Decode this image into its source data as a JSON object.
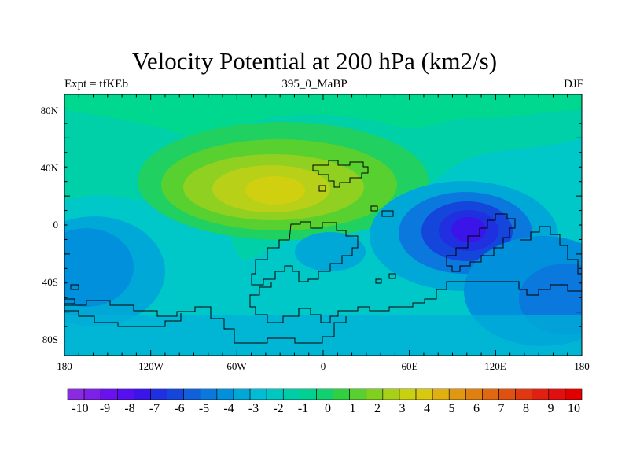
{
  "title": "Velocity Potential at 200 hPa (km2/s)",
  "subtitle_left": "Expt = tfKEb",
  "subtitle_center": "395_0_MaBP",
  "subtitle_right": "DJF",
  "x_ticks": [
    "180",
    "120W",
    "60W",
    "0",
    "60E",
    "120E",
    "180"
  ],
  "y_ticks": [
    "80N",
    "40N",
    "0",
    "40S",
    "80S"
  ],
  "colorbar": {
    "labels": [
      "-10",
      "-9",
      "-8",
      "-7",
      "-6",
      "-5",
      "-4",
      "-3",
      "-2",
      "-1",
      "0",
      "1",
      "2",
      "3",
      "4",
      "5",
      "6",
      "7",
      "8",
      "9",
      "10"
    ],
    "colors": [
      "#8a2be2",
      "#7d20e8",
      "#6a12ee",
      "#5610f0",
      "#3a14e8",
      "#2030e0",
      "#1446dc",
      "#1060dc",
      "#0a78dc",
      "#0090dc",
      "#00a8d8",
      "#00bcd4",
      "#00c8c0",
      "#00cca8",
      "#00d090",
      "#10d070",
      "#30d040",
      "#58d030",
      "#80d020",
      "#a8d018",
      "#c8d010",
      "#d8c810",
      "#e0b010",
      "#e09810",
      "#e08010",
      "#e06810",
      "#e05010",
      "#e03810",
      "#e02010",
      "#e01010",
      "#e00000"
    ]
  }
}
